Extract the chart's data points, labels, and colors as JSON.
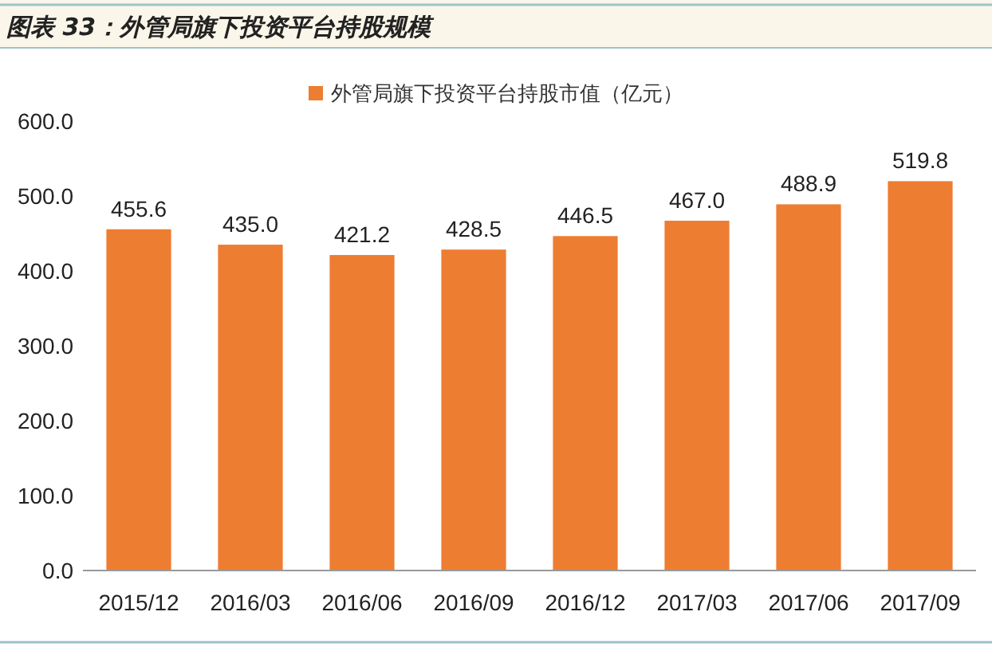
{
  "chart_data": {
    "type": "bar",
    "title": "图表 33：外管局旗下投资平台持股规模",
    "categories": [
      "2015/12",
      "2016/03",
      "2016/06",
      "2016/09",
      "2016/12",
      "2017/03",
      "2017/06",
      "2017/09"
    ],
    "series": [
      {
        "name": "外管局旗下投资平台持股市值（亿元）",
        "color": "#ed7d31",
        "values": [
          455.6,
          435.0,
          421.2,
          428.5,
          446.5,
          467.0,
          488.9,
          519.8
        ]
      }
    ],
    "value_labels": [
      "455.6",
      "435.0",
      "421.2",
      "428.5",
      "446.5",
      "467.0",
      "488.9",
      "519.8"
    ],
    "ylim": [
      0,
      600
    ],
    "yticks": [
      {
        "value": 0,
        "label": "0.0"
      },
      {
        "value": 100,
        "label": "100.0"
      },
      {
        "value": 200,
        "label": "200.0"
      },
      {
        "value": 300,
        "label": "300.0"
      },
      {
        "value": 400,
        "label": "400.0"
      },
      {
        "value": 500,
        "label": "500.0"
      },
      {
        "value": 600,
        "label": "600.0"
      }
    ],
    "grid": false,
    "legend": "top"
  }
}
